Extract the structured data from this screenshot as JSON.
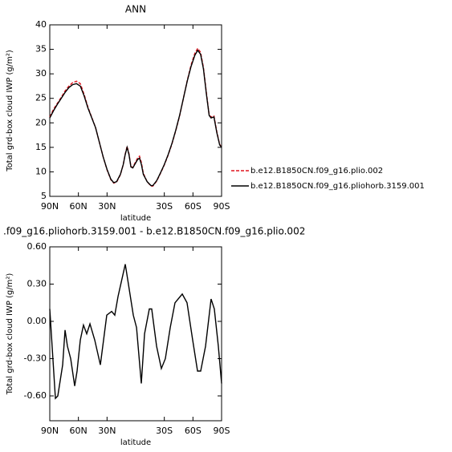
{
  "chart_data": [
    {
      "type": "line",
      "title": "ANN",
      "x_label": "latitude",
      "y_label": "Total grd-box cloud IWP (g/m²)",
      "xlim": [
        90,
        -90
      ],
      "xticks": [
        {
          "value": 90,
          "label": "90N"
        },
        {
          "value": 60,
          "label": "60N"
        },
        {
          "value": 30,
          "label": "30N"
        },
        {
          "value": -30,
          "label": "30S"
        },
        {
          "value": -60,
          "label": "60S"
        },
        {
          "value": -90,
          "label": "90S"
        }
      ],
      "ylim": [
        5,
        40
      ],
      "yticks": [
        5,
        10,
        15,
        20,
        25,
        30,
        35,
        40
      ],
      "legend": "outside-right",
      "x": [
        90,
        86,
        82,
        78,
        74,
        70,
        66,
        62,
        58,
        54,
        50,
        46,
        42,
        38,
        34,
        30,
        26,
        23,
        20,
        16,
        13,
        11,
        9,
        7,
        5,
        3,
        1,
        -2,
        -4,
        -6,
        -8,
        -12,
        -16,
        -18,
        -22,
        -26,
        -30,
        -34,
        -38,
        -42,
        -46,
        -50,
        -54,
        -58,
        -62,
        -65,
        -68,
        -71,
        -74,
        -77,
        -79,
        -82,
        -85,
        -88,
        -90
      ],
      "series": [
        {
          "name": "b.e12.B1850CN.f09_g16.plio.002",
          "color": "#e0141e",
          "style": "dashed",
          "values": [
            21.2,
            22.8,
            24,
            25.2,
            26.5,
            27.5,
            28.2,
            28.5,
            28,
            25.8,
            23.2,
            21.1,
            19,
            16,
            13,
            10.4,
            8.4,
            7.7,
            7.9,
            9.4,
            11.5,
            13.6,
            15.2,
            13.7,
            11.1,
            10.9,
            11.7,
            12.8,
            13.2,
            11.9,
            9.7,
            8,
            7.1,
            7.1,
            8.1,
            9.7,
            11.4,
            13.4,
            15.7,
            18.4,
            21.4,
            25,
            28.6,
            31.8,
            34.2,
            35.2,
            34.4,
            31.3,
            26.3,
            21.6,
            21.2,
            21.4,
            18.2,
            15.6,
            15
          ]
        },
        {
          "name": "b.e12.B1850CN.f09_g16.pliohorb.3159.001",
          "color": "#000000",
          "style": "solid",
          "values": [
            21,
            22.5,
            23.8,
            25,
            26.2,
            27.2,
            27.8,
            28,
            27.5,
            25.5,
            23,
            21,
            19,
            16,
            13,
            10.5,
            8.5,
            7.8,
            8,
            9.5,
            11.5,
            13.5,
            15,
            13.5,
            11,
            10.8,
            11.5,
            12.5,
            12.8,
            11.5,
            9.5,
            8,
            7.2,
            7.2,
            8.2,
            9.8,
            11.5,
            13.5,
            15.8,
            18.5,
            21.5,
            25,
            28.5,
            31.5,
            33.8,
            34.8,
            34,
            31,
            26,
            21.5,
            21,
            21.2,
            18,
            15.5,
            15
          ]
        }
      ]
    },
    {
      "type": "line",
      "title": ".f09_g16.pliohorb.3159.001 - b.e12.B1850CN.f09_g16.plio.002",
      "x_label": "latitude",
      "y_label": "Total grd-box cloud IWP (g/m²)",
      "xlim": [
        90,
        -90
      ],
      "xticks": [
        {
          "value": 90,
          "label": "90N"
        },
        {
          "value": 60,
          "label": "60N"
        },
        {
          "value": 30,
          "label": "30N"
        },
        {
          "value": -30,
          "label": "30S"
        },
        {
          "value": -60,
          "label": "60S"
        },
        {
          "value": -90,
          "label": "90S"
        }
      ],
      "ylim": [
        -0.8,
        0.6
      ],
      "yticks": [
        {
          "value": 0.6,
          "label": "0.60"
        },
        {
          "value": 0.3,
          "label": "0.30"
        },
        {
          "value": 0,
          "label": "0.00"
        },
        {
          "value": -0.3,
          "label": "-0.30"
        },
        {
          "value": -0.6,
          "label": "-0.60"
        }
      ],
      "x": [
        90,
        84.1,
        81.6,
        76.5,
        74,
        71.5,
        68.1,
        63.9,
        61.4,
        58,
        54.7,
        51.3,
        47.9,
        42.9,
        37,
        32.8,
        30.3,
        25.2,
        21.9,
        18.5,
        10.9,
        7.6,
        2.5,
        -0.9,
        -5.9,
        -9.3,
        -14.3,
        -16.8,
        -21.9,
        -26.9,
        -31.1,
        -36.2,
        -41.2,
        -48.8,
        -53.8,
        -59.7,
        -64.8,
        -68.1,
        -73.2,
        -79,
        -82.4,
        -86.6,
        -90
      ],
      "series": [
        {
          "color": "#000000",
          "style": "solid",
          "values": [
            0.1,
            -0.62,
            -0.6,
            -0.35,
            -0.07,
            -0.2,
            -0.3,
            -0.52,
            -0.4,
            -0.15,
            -0.03,
            -0.1,
            -0.02,
            -0.15,
            -0.35,
            -0.1,
            0.05,
            0.08,
            0.05,
            0.2,
            0.46,
            0.3,
            0.05,
            -0.05,
            -0.5,
            -0.1,
            0.1,
            0.1,
            -0.2,
            -0.38,
            -0.3,
            -0.05,
            0.15,
            0.22,
            0.15,
            -0.15,
            -0.4,
            -0.4,
            -0.2,
            0.18,
            0.1,
            -0.2,
            -0.5
          ]
        }
      ]
    }
  ]
}
